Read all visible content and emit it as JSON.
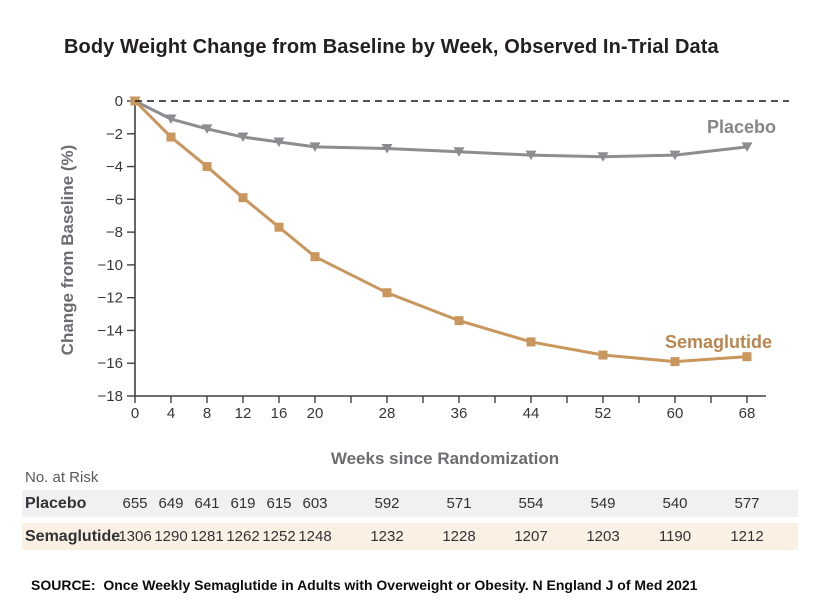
{
  "title": "Body Weight Change from Baseline by Week, Observed In-Trial Data",
  "chart_data": {
    "type": "line",
    "x": [
      0,
      4,
      8,
      12,
      16,
      20,
      28,
      36,
      44,
      52,
      60,
      68
    ],
    "series": [
      {
        "name": "Placebo",
        "marker": "triangle-down",
        "line_color": "#8b8d90",
        "label_color": "#84868a",
        "values": [
          0,
          -1.1,
          -1.7,
          -2.2,
          -2.5,
          -2.8,
          -2.9,
          -3.1,
          -3.3,
          -3.4,
          -3.3,
          -2.8
        ]
      },
      {
        "name": "Semaglutide",
        "marker": "square",
        "line_color": "#c9965e",
        "label_color": "#b9864f",
        "values": [
          0,
          -2.2,
          -4.0,
          -5.9,
          -7.7,
          -9.5,
          -11.7,
          -13.4,
          -14.7,
          -15.5,
          -15.9,
          -15.6
        ]
      }
    ],
    "title": "Body Weight Change from Baseline by Week, Observed In-Trial Data",
    "xlabel": "Weeks since Randomization",
    "ylabel": "Change from Baseline (%)",
    "xlim": [
      0,
      70
    ],
    "ylim": [
      -18,
      0
    ],
    "y_ticks": [
      0,
      -2,
      -4,
      -6,
      -8,
      -10,
      -12,
      -14,
      -16,
      -18
    ],
    "x_ticks_labeled": [
      0,
      4,
      8,
      12,
      16,
      20,
      28,
      36,
      44,
      52,
      60,
      68
    ],
    "x_tick_minor_step": 4,
    "zero_reference_line": "dashed",
    "grid": false,
    "legend_position": "inline-right"
  },
  "risk_table": {
    "header": "No. at Risk",
    "weeks": [
      0,
      4,
      8,
      12,
      16,
      20,
      28,
      36,
      44,
      52,
      60,
      68
    ],
    "rows": [
      {
        "label": "Placebo",
        "bg": "#f1f1f3",
        "values": [
          655,
          649,
          641,
          619,
          615,
          603,
          592,
          571,
          554,
          549,
          540,
          577
        ]
      },
      {
        "label": "Semaglutide",
        "bg": "#faf0e4",
        "values": [
          1306,
          1290,
          1281,
          1262,
          1252,
          1248,
          1232,
          1228,
          1207,
          1203,
          1190,
          1212
        ]
      }
    ]
  },
  "source": "SOURCE:  Once Weekly Semaglutide in Adults with Overweight or Obesity. N England J of Med 2021"
}
